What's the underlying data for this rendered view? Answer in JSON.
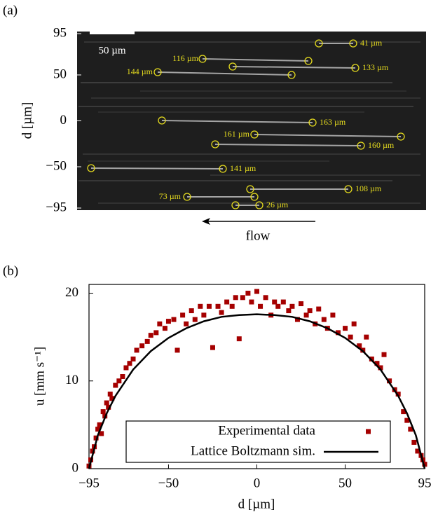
{
  "chart_data": [
    {
      "type": "image",
      "panel_label": "(a)",
      "ylabel": "d [µm]",
      "ylim": [
        -95,
        95
      ],
      "yticks": [
        95,
        50,
        0,
        {
          "value": -50,
          "label": "−50"
        },
        {
          "value": -95,
          "label": "−95"
        }
      ],
      "scalebar_label": "50 µm",
      "flow_label": "flow",
      "annotations": [
        "41 µm",
        "116 µm",
        "133 µm",
        "144 µm",
        "163 µm",
        "161 µm",
        "160 µm",
        "141 µm",
        "108 µm",
        "73 µm",
        "26 µm"
      ],
      "color": "#e6dc1e"
    },
    {
      "type": "scatter",
      "panel_label": "(b)",
      "xlabel": "d [µm]",
      "ylabel": "u [mm s⁻¹]",
      "xlim": [
        -95,
        95
      ],
      "xticks": [
        {
          "value": -95,
          "label": "−95"
        },
        {
          "value": -50,
          "label": "−50"
        },
        0,
        50,
        95
      ],
      "ylim": [
        0,
        21
      ],
      "yticks": [
        0,
        10,
        20
      ],
      "legend": "bottom",
      "series": [
        {
          "name": "Experimental data",
          "color": "#a50000",
          "style": "markers",
          "x": [
            -95,
            -94,
            -93,
            -92,
            -91,
            -90,
            -89,
            -88,
            -87,
            -86,
            -85,
            -84,
            -83,
            -82,
            -80,
            -78,
            -76,
            -74,
            -72,
            -70,
            -68,
            -65,
            -62,
            -60,
            -57,
            -55,
            -52,
            -50,
            -47,
            -45,
            -42,
            -40,
            -37,
            -35,
            -32,
            -30,
            -27,
            -25,
            -22,
            -20,
            -17,
            -14,
            -12,
            -10,
            -8,
            -5,
            -3,
            0,
            2,
            5,
            8,
            10,
            12,
            15,
            18,
            20,
            23,
            25,
            28,
            30,
            33,
            35,
            38,
            40,
            43,
            46,
            50,
            53,
            55,
            58,
            60,
            62,
            65,
            68,
            70,
            72,
            75,
            78,
            80,
            83,
            85,
            87,
            89,
            91,
            93,
            94,
            95
          ],
          "values": [
            0.3,
            1,
            2,
            2.5,
            3.5,
            4.5,
            5,
            4,
            6.5,
            6,
            7.5,
            7,
            8.5,
            8,
            9.5,
            10,
            10.5,
            11.5,
            12,
            12.5,
            13.5,
            14,
            14.5,
            15.2,
            15.5,
            16.5,
            16,
            16.8,
            17,
            13.5,
            17.5,
            16.5,
            18,
            17,
            18.5,
            17.5,
            18.5,
            13.8,
            18.5,
            17.8,
            19,
            18.5,
            19.5,
            14.8,
            19.5,
            20,
            19,
            20.2,
            18.5,
            19.5,
            17.5,
            19,
            18.5,
            19,
            18,
            18.5,
            17,
            18.8,
            17.5,
            18,
            16.5,
            18.2,
            17,
            16,
            17.5,
            15.5,
            16,
            15,
            16.5,
            14,
            13.5,
            15,
            12.5,
            12,
            11.5,
            13,
            10,
            9,
            8.5,
            6.5,
            5.5,
            4.5,
            3,
            2,
            1.5,
            1,
            0.5
          ]
        },
        {
          "name": "Lattice Boltzmann sim.",
          "color": "#000000",
          "style": "line",
          "x": [
            -95,
            -90,
            -85,
            -80,
            -70,
            -60,
            -50,
            -40,
            -30,
            -20,
            -10,
            0,
            10,
            20,
            30,
            40,
            50,
            60,
            70,
            80,
            85,
            90,
            95
          ],
          "values": [
            0,
            3.8,
            6.3,
            8.3,
            11.3,
            13.4,
            14.9,
            16,
            16.8,
            17.3,
            17.5,
            17.6,
            17.5,
            17.3,
            16.8,
            16,
            14.9,
            13.4,
            11.3,
            8.3,
            6.3,
            3.8,
            0
          ]
        }
      ]
    }
  ]
}
